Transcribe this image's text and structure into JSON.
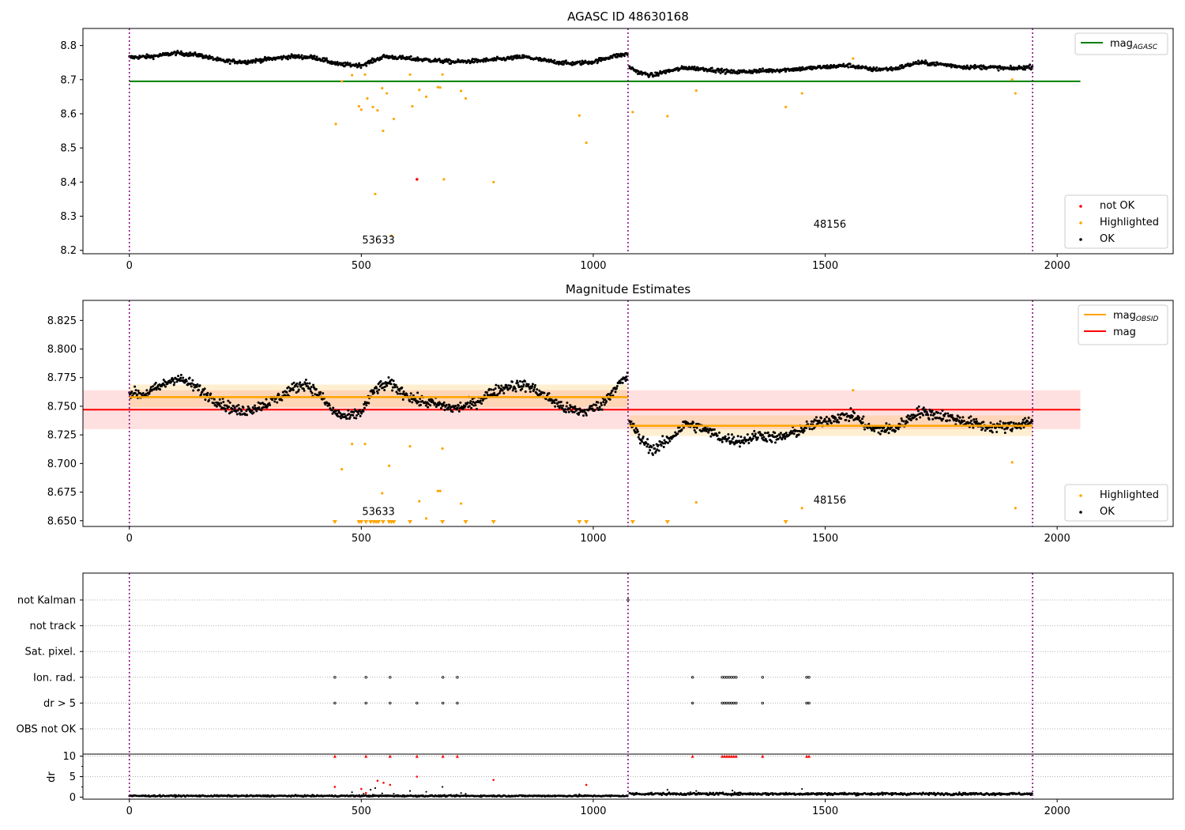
{
  "chart_data": [
    {
      "type": "scatter",
      "title": "AGASC ID 48630168",
      "xlim": [
        -100,
        2250
      ],
      "ylim": [
        8.19,
        8.85
      ],
      "x_ticks": [
        0,
        500,
        1000,
        1500,
        2000
      ],
      "y_ticks": [
        8.2,
        8.3,
        8.4,
        8.5,
        8.6,
        8.7,
        8.8
      ],
      "y_tick_labels": [
        "8.2",
        "8.3",
        "8.4",
        "8.5",
        "8.6",
        "8.7",
        "8.8"
      ],
      "hline": {
        "name": "mag_AGASC",
        "y": 8.695,
        "x_range": [
          0,
          2050
        ],
        "color": "#008000"
      },
      "obs_boundaries": [
        0,
        1075,
        1947
      ],
      "obs_labels": [
        {
          "text": "53633",
          "x": 537,
          "y": 8.22
        },
        {
          "text": "48156",
          "x": 1510,
          "y": 8.267
        }
      ],
      "ok_segments": [
        {
          "x_range": [
            0,
            1075
          ],
          "pattern": [
            [
              0,
              8.765
            ],
            [
              50,
              8.768
            ],
            [
              100,
              8.778
            ],
            [
              150,
              8.772
            ],
            [
              200,
              8.755
            ],
            [
              250,
              8.752
            ],
            [
              300,
              8.76
            ],
            [
              350,
              8.768
            ],
            [
              400,
              8.765
            ],
            [
              450,
              8.745
            ],
            [
              500,
              8.742
            ],
            [
              550,
              8.768
            ],
            [
              600,
              8.762
            ],
            [
              650,
              8.757
            ],
            [
              700,
              8.752
            ],
            [
              750,
              8.755
            ],
            [
              800,
              8.76
            ],
            [
              850,
              8.767
            ],
            [
              900,
              8.755
            ],
            [
              950,
              8.747
            ],
            [
              1000,
              8.752
            ],
            [
              1040,
              8.768
            ],
            [
              1075,
              8.775
            ]
          ],
          "noise": 0.009
        },
        {
          "x_range": [
            1078,
            1947
          ],
          "pattern": [
            [
              1078,
              8.737
            ],
            [
              1100,
              8.72
            ],
            [
              1130,
              8.712
            ],
            [
              1150,
              8.722
            ],
            [
              1200,
              8.735
            ],
            [
              1250,
              8.73
            ],
            [
              1300,
              8.722
            ],
            [
              1350,
              8.725
            ],
            [
              1400,
              8.728
            ],
            [
              1450,
              8.732
            ],
            [
              1500,
              8.737
            ],
            [
              1550,
              8.742
            ],
            [
              1600,
              8.73
            ],
            [
              1650,
              8.732
            ],
            [
              1700,
              8.75
            ],
            [
              1750,
              8.745
            ],
            [
              1800,
              8.737
            ],
            [
              1850,
              8.737
            ],
            [
              1900,
              8.732
            ],
            [
              1947,
              8.738
            ]
          ],
          "noise": 0.009
        }
      ],
      "highlighted": [
        [
          445,
          8.57
        ],
        [
          458,
          8.695
        ],
        [
          480,
          8.713
        ],
        [
          495,
          8.622
        ],
        [
          500,
          8.612
        ],
        [
          508,
          8.715
        ],
        [
          513,
          8.645
        ],
        [
          525,
          8.62
        ],
        [
          530,
          8.365
        ],
        [
          535,
          8.61
        ],
        [
          545,
          8.675
        ],
        [
          547,
          8.55
        ],
        [
          555,
          8.66
        ],
        [
          565,
          8.243
        ],
        [
          570,
          8.585
        ],
        [
          605,
          8.715
        ],
        [
          610,
          8.622
        ],
        [
          625,
          8.67
        ],
        [
          640,
          8.65
        ],
        [
          665,
          8.678
        ],
        [
          670,
          8.677
        ],
        [
          675,
          8.715
        ],
        [
          678,
          8.408
        ],
        [
          715,
          8.667
        ],
        [
          725,
          8.645
        ],
        [
          785,
          8.4
        ],
        [
          970,
          8.595
        ],
        [
          985,
          8.515
        ],
        [
          1085,
          8.605
        ],
        [
          1160,
          8.593
        ],
        [
          1222,
          8.668
        ],
        [
          1415,
          8.62
        ],
        [
          1450,
          8.66
        ],
        [
          1560,
          8.762
        ],
        [
          1903,
          8.7
        ],
        [
          1910,
          8.66
        ]
      ],
      "not_ok": [
        [
          620,
          8.408
        ]
      ],
      "legend_top": [
        {
          "label": "mag_AGASC",
          "color": "#008000"
        }
      ],
      "legend_bottom": [
        {
          "label": "not OK",
          "color": "#ff0000"
        },
        {
          "label": "Highlighted",
          "color": "#ffa500"
        },
        {
          "label": "OK",
          "color": "#000000"
        }
      ]
    },
    {
      "type": "scatter",
      "title": "Magnitude Estimates",
      "xlim": [
        -100,
        2250
      ],
      "ylim": [
        8.645,
        8.8425
      ],
      "x_ticks": [
        0,
        500,
        1000,
        1500,
        2000
      ],
      "y_ticks": [
        8.65,
        8.675,
        8.7,
        8.725,
        8.75,
        8.775,
        8.8,
        8.825
      ],
      "y_tick_labels": [
        "8.650",
        "8.675",
        "8.700",
        "8.725",
        "8.750",
        "8.775",
        "8.800",
        "8.825"
      ],
      "mag": {
        "value": 8.747,
        "band": [
          8.73,
          8.764
        ],
        "x_range": [
          -100,
          2050
        ],
        "color": "#ff0000"
      },
      "mag_obsid": [
        {
          "x_range": [
            0,
            1075
          ],
          "value": 8.758,
          "band": [
            8.749,
            8.769
          ]
        },
        {
          "x_range": [
            1078,
            1947
          ],
          "value": 8.733,
          "band": [
            8.724,
            8.742
          ]
        }
      ],
      "obs_boundaries": [
        0,
        1075,
        1947
      ],
      "obs_labels": [
        {
          "text": "53633",
          "x": 537,
          "y": 8.655
        },
        {
          "text": "48156",
          "x": 1510,
          "y": 8.665
        }
      ],
      "ok_segments": [
        {
          "x_range": [
            0,
            1075
          ],
          "pattern": [
            [
              0,
              8.762
            ],
            [
              30,
              8.76
            ],
            [
              70,
              8.768
            ],
            [
              100,
              8.775
            ],
            [
              130,
              8.77
            ],
            [
              160,
              8.762
            ],
            [
              200,
              8.752
            ],
            [
              240,
              8.745
            ],
            [
              280,
              8.75
            ],
            [
              320,
              8.757
            ],
            [
              350,
              8.765
            ],
            [
              380,
              8.77
            ],
            [
              410,
              8.76
            ],
            [
              440,
              8.745
            ],
            [
              470,
              8.74
            ],
            [
              500,
              8.745
            ],
            [
              530,
              8.765
            ],
            [
              560,
              8.77
            ],
            [
              590,
              8.762
            ],
            [
              620,
              8.755
            ],
            [
              660,
              8.752
            ],
            [
              700,
              8.748
            ],
            [
              740,
              8.752
            ],
            [
              780,
              8.762
            ],
            [
              820,
              8.768
            ],
            [
              860,
              8.768
            ],
            [
              900,
              8.758
            ],
            [
              940,
              8.748
            ],
            [
              980,
              8.745
            ],
            [
              1020,
              8.752
            ],
            [
              1050,
              8.768
            ],
            [
              1075,
              8.775
            ]
          ],
          "noise": 0.0075
        },
        {
          "x_range": [
            1078,
            1947
          ],
          "pattern": [
            [
              1078,
              8.738
            ],
            [
              1100,
              8.722
            ],
            [
              1130,
              8.712
            ],
            [
              1160,
              8.72
            ],
            [
              1200,
              8.735
            ],
            [
              1240,
              8.73
            ],
            [
              1280,
              8.722
            ],
            [
              1320,
              8.72
            ],
            [
              1360,
              8.725
            ],
            [
              1400,
              8.722
            ],
            [
              1440,
              8.728
            ],
            [
              1480,
              8.735
            ],
            [
              1520,
              8.74
            ],
            [
              1560,
              8.742
            ],
            [
              1600,
              8.73
            ],
            [
              1650,
              8.73
            ],
            [
              1700,
              8.745
            ],
            [
              1750,
              8.742
            ],
            [
              1800,
              8.737
            ],
            [
              1850,
              8.732
            ],
            [
              1900,
              8.732
            ],
            [
              1947,
              8.738
            ]
          ],
          "noise": 0.0075
        }
      ],
      "highlighted": [
        [
          458,
          8.695
        ],
        [
          480,
          8.717
        ],
        [
          508,
          8.717
        ],
        [
          545,
          8.674
        ],
        [
          560,
          8.698
        ],
        [
          605,
          8.715
        ],
        [
          625,
          8.667
        ],
        [
          640,
          8.652
        ],
        [
          665,
          8.676
        ],
        [
          670,
          8.676
        ],
        [
          675,
          8.713
        ],
        [
          715,
          8.665
        ],
        [
          1222,
          8.666
        ],
        [
          1450,
          8.661
        ],
        [
          1560,
          8.764
        ],
        [
          1903,
          8.701
        ],
        [
          1910,
          8.661
        ]
      ],
      "below_range": [
        443,
        495,
        500,
        510,
        520,
        527,
        532,
        537,
        547,
        560,
        565,
        570,
        605,
        675,
        725,
        785,
        970,
        985,
        1085,
        1160,
        1415
      ],
      "legend_top": [
        {
          "label": "mag_OBSID",
          "color": "#ffa500"
        },
        {
          "label": "mag",
          "color": "#ff0000"
        }
      ],
      "legend_bottom": [
        {
          "label": "Highlighted",
          "color": "#ffa500"
        },
        {
          "label": "OK",
          "color": "#000000"
        }
      ]
    },
    {
      "type": "scatter",
      "title": "",
      "xlim": [
        -100,
        2250
      ],
      "x_ticks": [
        0,
        500,
        1000,
        1500,
        2000
      ],
      "obs_boundaries": [
        0,
        1075,
        1947
      ],
      "flag_rows": [
        "not Kalman",
        "not track",
        "Sat. pixel.",
        "Ion. rad.",
        "dr > 5",
        "OBS not OK"
      ],
      "flag_points": {
        "not Kalman": [
          1075
        ],
        "Ion. rad.": [
          443,
          510,
          562,
          676,
          707,
          1214,
          1278,
          1283,
          1288,
          1293,
          1298,
          1303,
          1308,
          1365,
          1460,
          1465
        ],
        "dr > 5": [
          443,
          510,
          562,
          620,
          676,
          707,
          1214,
          1278,
          1283,
          1288,
          1293,
          1298,
          1303,
          1308,
          1365,
          1460,
          1465
        ]
      },
      "dr_ylabel": "dr",
      "dr_ylim": [
        -0.5,
        10.5
      ],
      "dr_ticks": [
        0,
        5,
        10
      ],
      "dr_cap": 10,
      "dr_ok_segments": [
        {
          "x_range": [
            0,
            1075
          ],
          "level": 0.3,
          "noise": 0.12
        },
        {
          "x_range": [
            1078,
            1947
          ],
          "level": 0.8,
          "noise": 0.2
        }
      ],
      "dr_red": [
        [
          443,
          2.5
        ],
        [
          500,
          2
        ],
        [
          510,
          1
        ],
        [
          535,
          4
        ],
        [
          548,
          3.5
        ],
        [
          562,
          3
        ],
        [
          620,
          5
        ],
        [
          785,
          4.2
        ],
        [
          985,
          3
        ]
      ],
      "dr_small": [
        [
          480,
          1.2
        ],
        [
          505,
          0.8
        ],
        [
          520,
          1.8
        ],
        [
          525,
          0.6
        ],
        [
          530,
          2.2
        ],
        [
          545,
          0.9
        ],
        [
          570,
          0.8
        ],
        [
          605,
          1.5
        ],
        [
          640,
          1.3
        ],
        [
          675,
          2.5
        ],
        [
          715,
          1
        ],
        [
          725,
          0.8
        ],
        [
          970,
          0.7
        ],
        [
          1160,
          1.8
        ],
        [
          1222,
          1.5
        ],
        [
          1300,
          1.6
        ],
        [
          1450,
          2
        ]
      ]
    }
  ]
}
